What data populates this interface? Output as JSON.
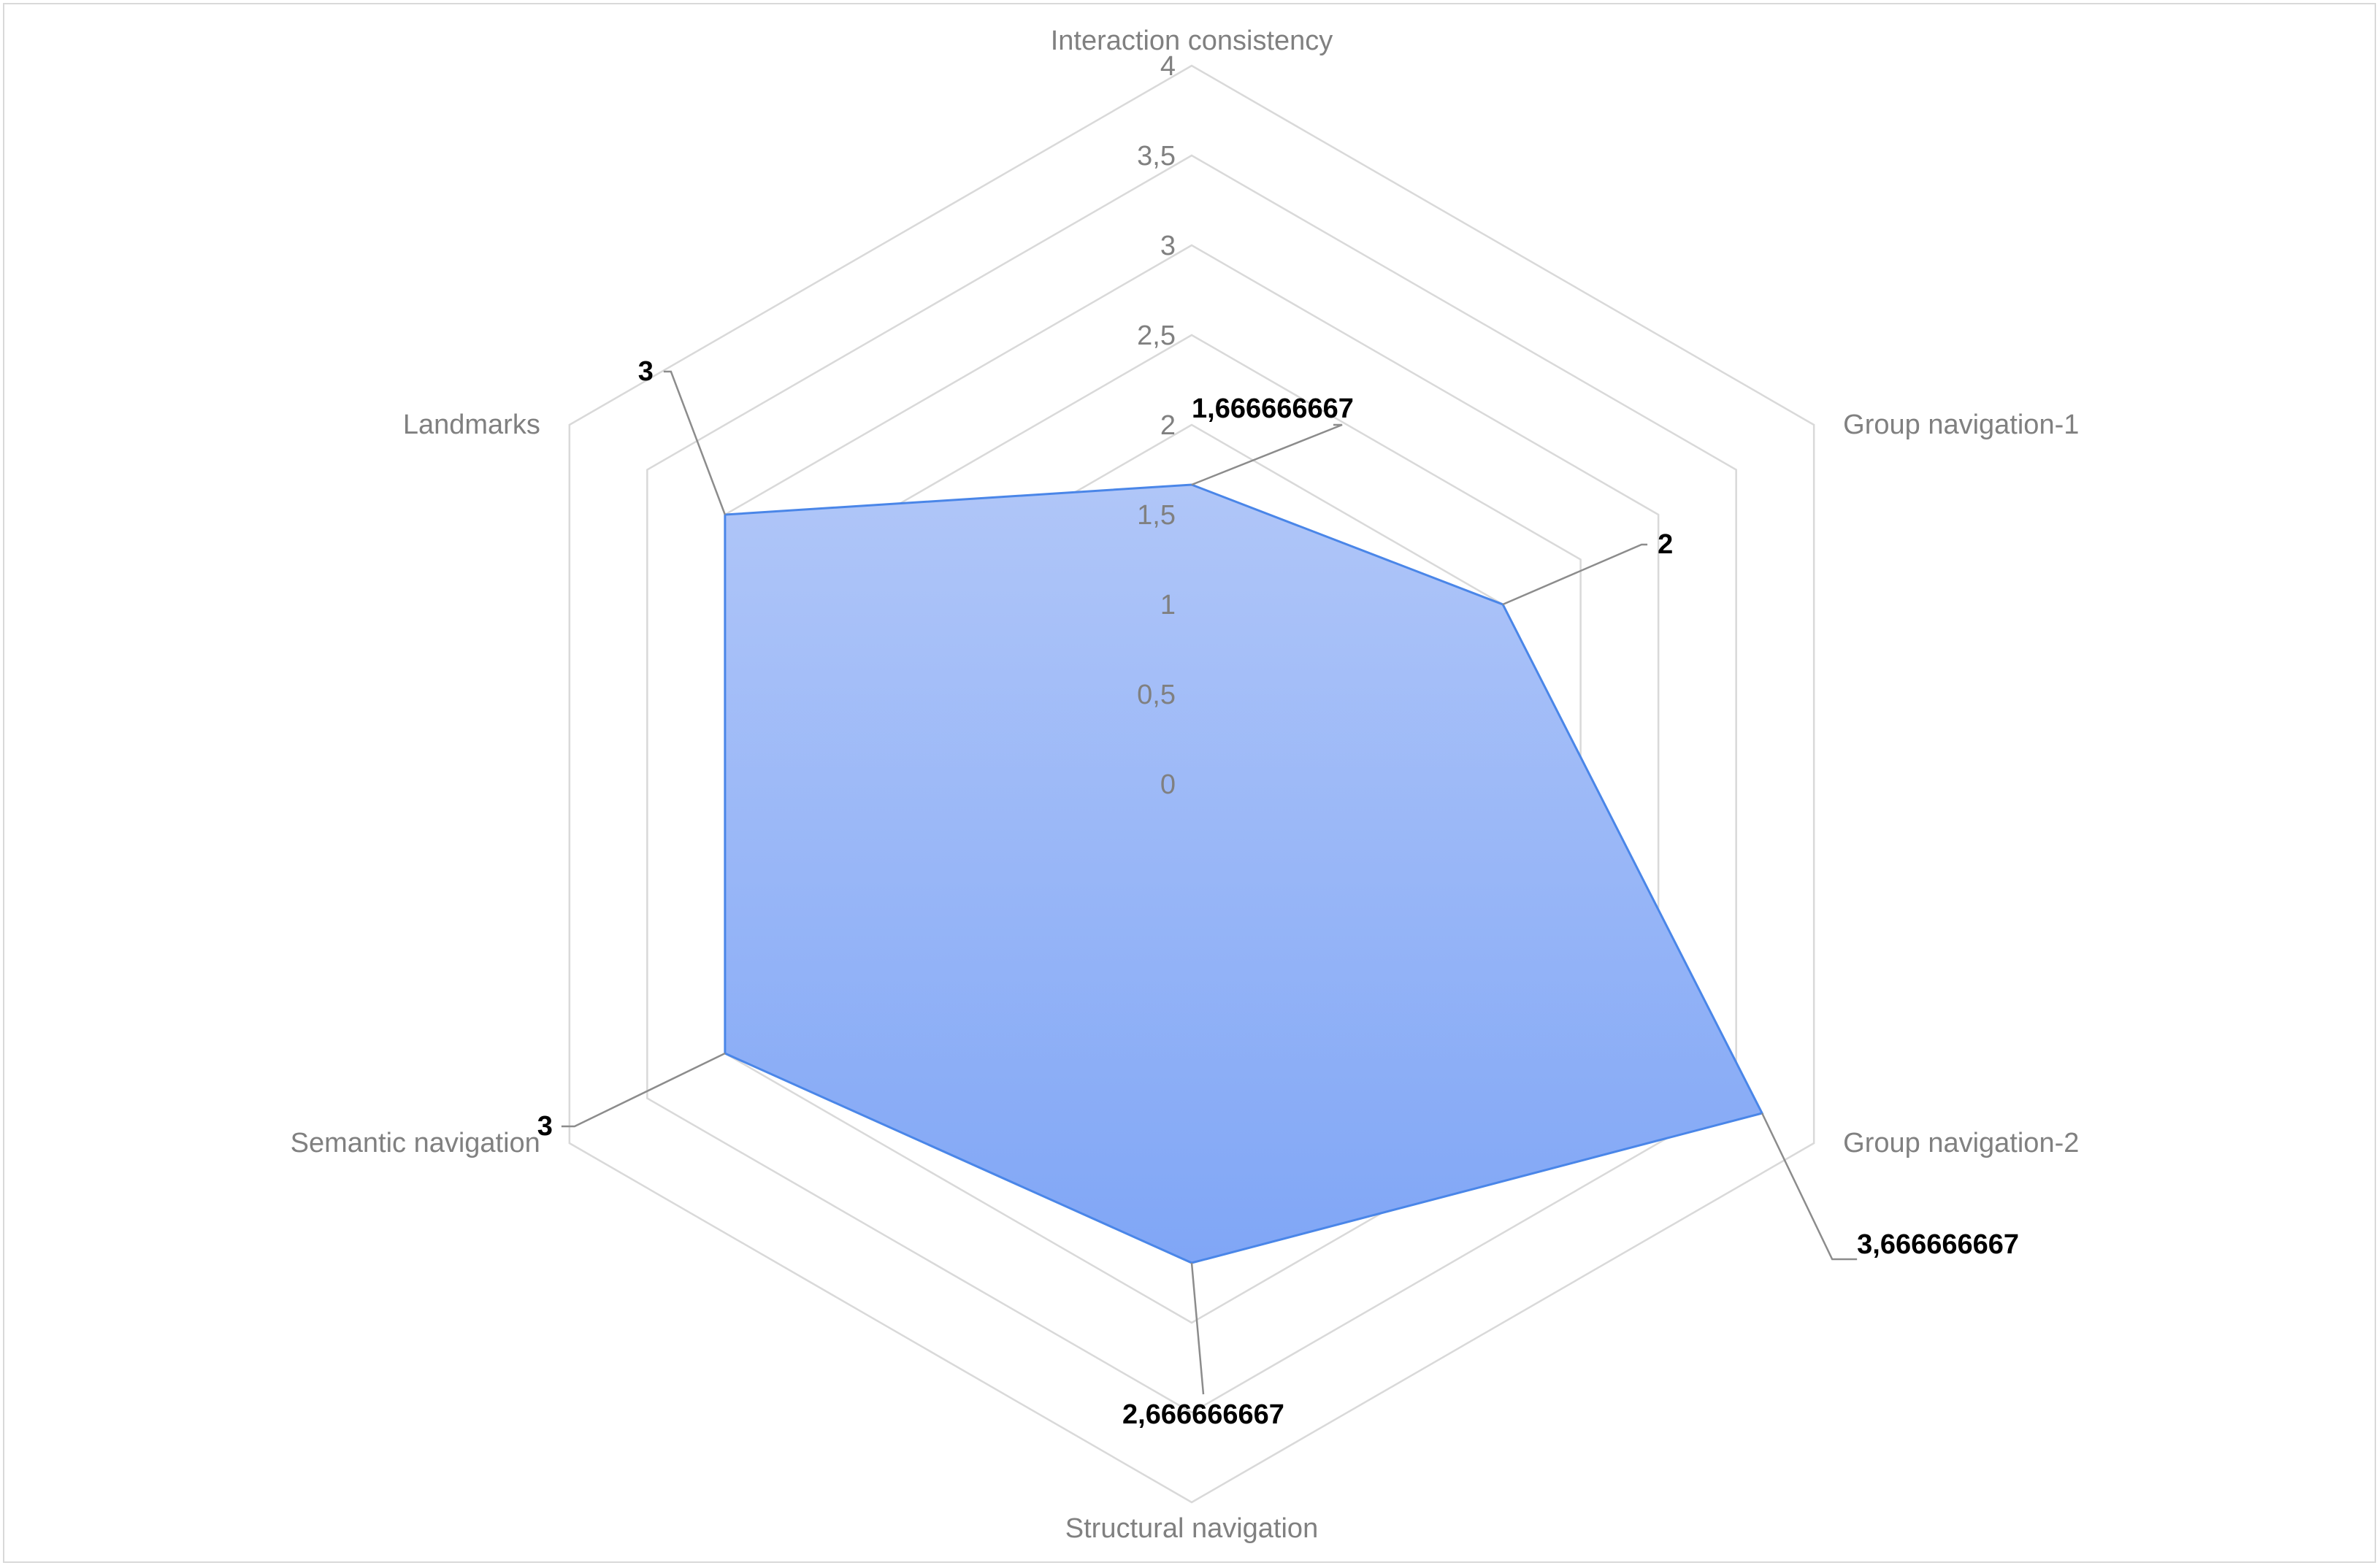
{
  "chart_data": {
    "type": "radar",
    "categories": [
      "Interaction consistency",
      "Group navigation-1",
      "Group navigation-2",
      "Structural navigation",
      "Semantic navigation",
      "Landmarks"
    ],
    "series": [
      {
        "values": [
          1.666666667,
          2,
          3.666666667,
          2.666666667,
          3,
          3
        ],
        "labels": [
          "1,666666667",
          "2",
          "3,666666667",
          "2,666666667",
          "3",
          "3"
        ],
        "color": "#4a86e8",
        "fill_top": "#b0c6f8",
        "fill_bottom": "#80a6f6"
      }
    ],
    "rmin": 0,
    "rmax": 4,
    "ticks": [
      "0",
      "0,5",
      "1",
      "1,5",
      "2",
      "2,5",
      "3",
      "3,5",
      "4"
    ],
    "grid": true,
    "grid_color": "#d9d9d9",
    "legend": "none"
  }
}
